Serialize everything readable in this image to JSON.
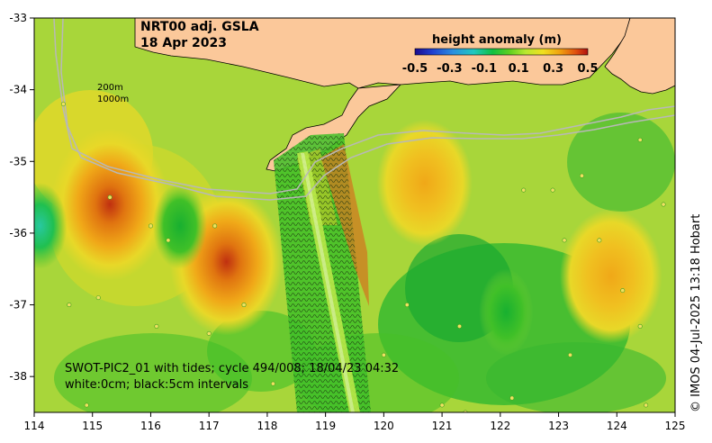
{
  "title": {
    "line1": "NRT00 adj. GSLA",
    "line2": "18 Apr 2023"
  },
  "colorbar": {
    "title": "height anomaly (m)",
    "tick_labels": [
      "-0.5",
      "-0.3",
      "-0.1",
      "0.1",
      "0.3",
      "0.5"
    ],
    "colors": [
      "#1a0a8c",
      "#1f3fd0",
      "#2a8fe0",
      "#20c8c0",
      "#10c040",
      "#60d020",
      "#b8e830",
      "#f0e020",
      "#f0a010",
      "#e05010",
      "#b01010"
    ]
  },
  "axes": {
    "x_ticks": [
      "114",
      "115",
      "116",
      "117",
      "118",
      "119",
      "120",
      "121",
      "122",
      "123",
      "124",
      "125"
    ],
    "y_ticks": [
      "-33",
      "-34",
      "-35",
      "-36",
      "-37",
      "-38"
    ],
    "lon_range": [
      114,
      125
    ],
    "lat_range": [
      -38.5,
      -33
    ]
  },
  "isobath_labels": [
    "200m",
    "1000m"
  ],
  "swot_note": {
    "line1": "SWOT-PIC2_01 with tides; cycle 494/008; 18/04/23 04:32",
    "line2": "white:0cm; black:5cm intervals"
  },
  "credit": "© IMOS 04-Jul-2025 13:18 Hobart",
  "palette": {
    "land": "#fbc89a",
    "sea_base": "#a8d63a",
    "green_dark": "#18b030",
    "green_mid": "#48c028",
    "yellow": "#e8d828",
    "orange": "#f0a818",
    "orange_dark": "#e07410",
    "red": "#c03010",
    "teal": "#28c8a0",
    "isobath": "#b8b8b8"
  },
  "anomaly_features": [
    {
      "kind": "warm",
      "label": "eddy-115.3",
      "lon": 115.3,
      "lat": -35.6,
      "value": 0.42
    },
    {
      "kind": "warm",
      "label": "eddy-117.3",
      "lon": 117.3,
      "lat": -36.4,
      "value": 0.38
    },
    {
      "kind": "warm",
      "label": "eddy-120.7",
      "lon": 120.7,
      "lat": -35.3,
      "value": 0.22
    },
    {
      "kind": "warm",
      "label": "eddy-123.9",
      "lon": 123.9,
      "lat": -36.6,
      "value": 0.28
    },
    {
      "kind": "cool",
      "label": "eddy-114.1",
      "lon": 114.1,
      "lat": -35.9,
      "value": -0.08
    },
    {
      "kind": "cool",
      "label": "eddy-116.5",
      "lon": 116.5,
      "lat": -35.9,
      "value": -0.02
    },
    {
      "kind": "cool",
      "label": "eddy-122.1",
      "lon": 122.1,
      "lat": -37.1,
      "value": -0.02
    }
  ]
}
